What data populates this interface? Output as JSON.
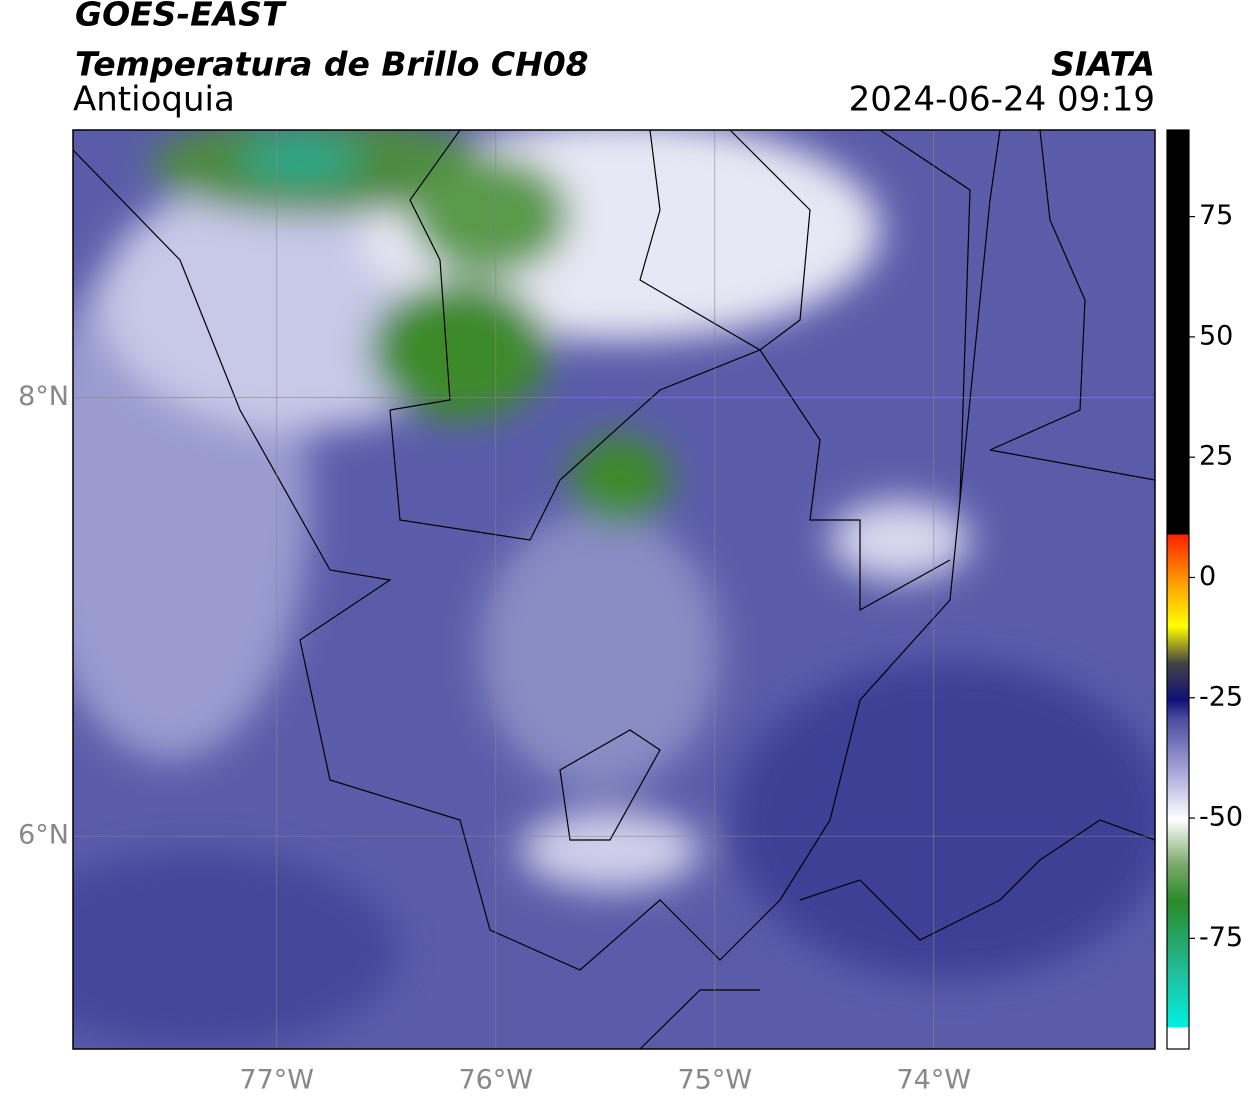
{
  "header": {
    "title": "GOES-EAST",
    "subtitle": "Temperatura de Brillo CH08",
    "region": "Antioquia",
    "source": "SIATA",
    "datetime": "2024-06-24 09:19"
  },
  "map": {
    "xlim": [
      -77.93,
      -72.99
    ],
    "ylim": [
      5.03,
      9.22
    ],
    "xticks": [
      {
        "value": -77,
        "label": "77°W"
      },
      {
        "value": -76,
        "label": "76°W"
      },
      {
        "value": -75,
        "label": "75°W"
      },
      {
        "value": -74,
        "label": "74°W"
      }
    ],
    "yticks": [
      {
        "value": 8,
        "label": "8°N"
      },
      {
        "value": 6,
        "label": "6°N"
      }
    ],
    "grid": true
  },
  "colorbar": {
    "lim": [
      -98,
      93
    ],
    "ticks": [
      75,
      50,
      25,
      0,
      -25,
      -50,
      -75
    ]
  }
}
